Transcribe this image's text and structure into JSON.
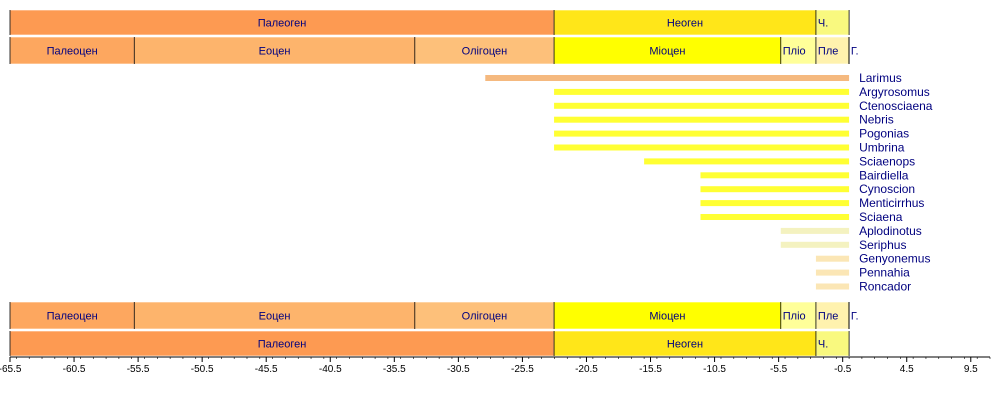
{
  "chart_data": {
    "type": "bar",
    "orientation": "horizontal",
    "title": "",
    "xlabel": "",
    "ylabel": "",
    "xlim": [
      -65.5,
      11
    ],
    "x_ticks": [
      -65.5,
      -60.5,
      -55.5,
      -50.5,
      -45.5,
      -40.5,
      -35.5,
      -30.5,
      -25.5,
      -20.5,
      -15.5,
      -10.5,
      -5.5,
      -0.5,
      4.5,
      9.5
    ],
    "periods": [
      {
        "name": "Палеоген",
        "start": -65.5,
        "end": -23.03,
        "color": "#fd9a52"
      },
      {
        "name": "Неоген",
        "start": -23.03,
        "end": -2.588,
        "color": "#ffe619"
      },
      {
        "name": "Ч.",
        "start": -2.588,
        "end": 0,
        "color": "#f9f97f"
      }
    ],
    "epochs": [
      {
        "name": "Палеоцен",
        "start": -65.5,
        "end": -55.8,
        "color": "#fda75f"
      },
      {
        "name": "Еоцен",
        "start": -55.8,
        "end": -33.9,
        "color": "#fdb46c"
      },
      {
        "name": "Олігоцен",
        "start": -33.9,
        "end": -23.03,
        "color": "#fdc07a"
      },
      {
        "name": "Міоцен",
        "start": -23.03,
        "end": -5.332,
        "color": "#ffff00"
      },
      {
        "name": "Пліо",
        "start": -5.332,
        "end": -2.588,
        "color": "#ffff99"
      },
      {
        "name": "Пле",
        "start": -2.588,
        "end": -0.0117,
        "color": "#fff2ae"
      },
      {
        "name": "Г.",
        "start": -0.0117,
        "end": 0,
        "color": "#feebd2"
      }
    ],
    "series": [
      {
        "name": "Larimus",
        "start": -28.4,
        "end": 0,
        "color": "#f5b97f"
      },
      {
        "name": "Argyrosomus",
        "start": -23.03,
        "end": 0,
        "color": "#ffff33"
      },
      {
        "name": "Ctenosciaena",
        "start": -23.03,
        "end": 0,
        "color": "#ffff33"
      },
      {
        "name": "Nebris",
        "start": -23.03,
        "end": 0,
        "color": "#ffff33"
      },
      {
        "name": "Pogonias",
        "start": -23.03,
        "end": 0,
        "color": "#ffff33"
      },
      {
        "name": "Umbrina",
        "start": -23.03,
        "end": 0,
        "color": "#ffff33"
      },
      {
        "name": "Sciaenops",
        "start": -16.0,
        "end": 0,
        "color": "#ffff33"
      },
      {
        "name": "Bairdiella",
        "start": -11.6,
        "end": 0,
        "color": "#ffff33"
      },
      {
        "name": "Cynoscion",
        "start": -11.6,
        "end": 0,
        "color": "#ffff33"
      },
      {
        "name": "Menticirrhus",
        "start": -11.6,
        "end": 0,
        "color": "#ffff33"
      },
      {
        "name": "Sciaena",
        "start": -11.6,
        "end": 0,
        "color": "#ffff33"
      },
      {
        "name": "Aplodinotus",
        "start": -5.332,
        "end": 0,
        "color": "#f4f2c0"
      },
      {
        "name": "Seriphus",
        "start": -5.332,
        "end": 0,
        "color": "#f4f2c0"
      },
      {
        "name": "Genyonemus",
        "start": -2.588,
        "end": 0,
        "color": "#fbe6b5"
      },
      {
        "name": "Pennahia",
        "start": -2.588,
        "end": 0,
        "color": "#fbe6b5"
      },
      {
        "name": "Roncador",
        "start": -2.588,
        "end": 0,
        "color": "#fbe6b5"
      }
    ],
    "label_color": "#00007f",
    "grid": false,
    "legend": "none"
  }
}
